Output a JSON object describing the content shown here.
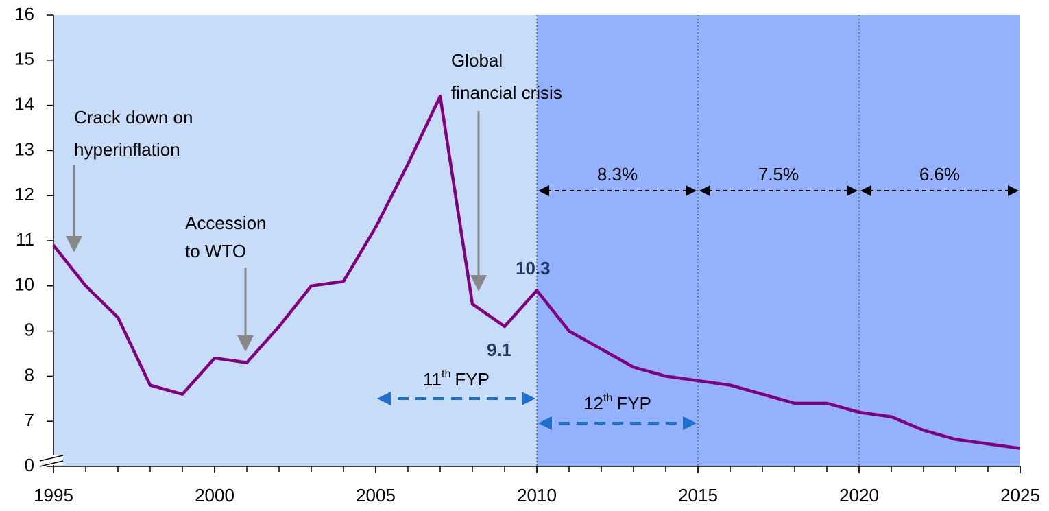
{
  "chart_data": {
    "type": "line",
    "x": [
      1995,
      1996,
      1997,
      1998,
      1999,
      2000,
      2001,
      2002,
      2003,
      2004,
      2005,
      2006,
      2007,
      2008,
      2009,
      2010,
      2011,
      2012,
      2013,
      2014,
      2015,
      2016,
      2017,
      2018,
      2019,
      2020,
      2021,
      2022,
      2023,
      2024,
      2025
    ],
    "values": [
      10.9,
      10.0,
      9.3,
      7.8,
      7.6,
      8.4,
      8.3,
      9.1,
      10.0,
      10.1,
      11.3,
      12.7,
      14.2,
      9.6,
      9.1,
      9.9,
      9.0,
      8.6,
      8.2,
      8.0,
      7.9,
      7.8,
      7.6,
      7.4,
      7.4,
      7.2,
      7.1,
      6.8,
      6.6,
      6.5,
      6.4
    ],
    "color": "#800080",
    "xlim": [
      1995,
      2025
    ],
    "xticks": [
      1995,
      2000,
      2005,
      2010,
      2015,
      2020,
      2025
    ],
    "ylim": [
      0,
      16
    ],
    "axis_break": [
      0,
      6
    ],
    "yticks": [
      0,
      7,
      8,
      9,
      10,
      11,
      12,
      13,
      14,
      15,
      16
    ],
    "periods": [
      {
        "from": 1995,
        "to": 2010,
        "color": "#c6dcf8"
      },
      {
        "from": 2010,
        "to": 2025,
        "color": "#94b1fd"
      }
    ],
    "growth_spans": [
      {
        "from": 2010,
        "to": 2015,
        "label": "8.3%"
      },
      {
        "from": 2015,
        "to": 2020,
        "label": "7.5%"
      },
      {
        "from": 2020,
        "to": 2025,
        "label": "6.6%"
      }
    ],
    "plan_spans": [
      {
        "from": 2005,
        "to": 2010,
        "number": "11",
        "suffix": "th",
        "name": "FYP"
      },
      {
        "from": 2010,
        "to": 2015,
        "number": "12",
        "suffix": "th",
        "name": "FYP"
      }
    ],
    "annotations": [
      {
        "lines": [
          "Crack down on",
          "hyperinflation"
        ]
      },
      {
        "lines": [
          "Accession",
          "to WTO"
        ]
      },
      {
        "lines": [
          "Global",
          "financial crisis"
        ]
      }
    ],
    "point_labels": [
      "10.3",
      "9.1"
    ]
  }
}
